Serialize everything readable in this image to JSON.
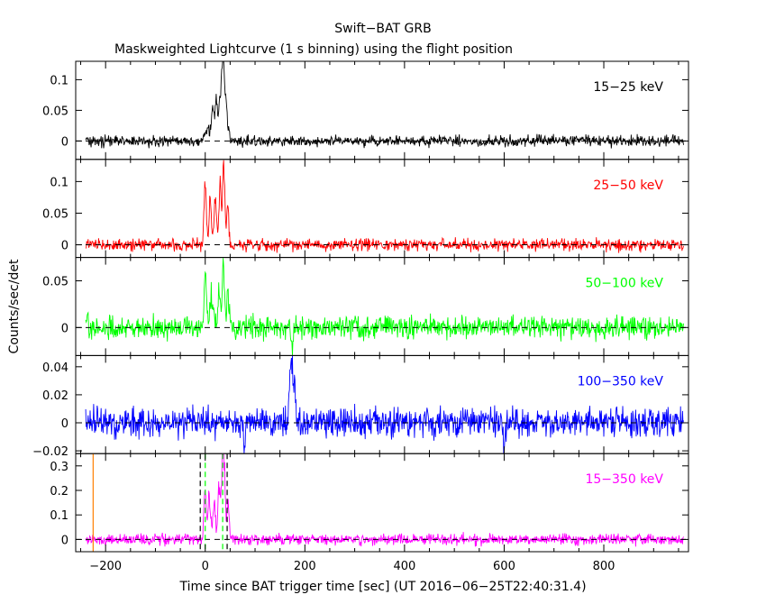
{
  "title": "Swift−BAT GRB",
  "subtitle": "Maskweighted Lightcurve (1 s binning) using the flight position",
  "ylabel": "Counts/sec/det",
  "xlabel": "Time since BAT trigger time [sec] (UT 2016−06−25T22:40:31.4)",
  "colors": {
    "axes": "#000000",
    "band_15_25": "#000000",
    "band_25_50": "#ff0000",
    "band_50_100": "#00ff00",
    "band_100_350": "#0000ff",
    "band_15_350": "#ff00ff",
    "marker_orange": "#ff7f00",
    "marker_green": "#00ff00"
  },
  "chart_data": {
    "type": "line",
    "xlim": [
      -260,
      970
    ],
    "x_ticks": [
      -200,
      0,
      200,
      400,
      600,
      800
    ],
    "x_tick_labels": [
      "−200",
      "0",
      "200",
      "400",
      "600",
      "800"
    ],
    "x_range_data": [
      -240,
      960
    ],
    "panels": [
      {
        "name": "15−25 keV",
        "color": "#000000",
        "ylim": [
          -0.03,
          0.13
        ],
        "y_ticks": [
          0,
          0.05,
          0.1
        ],
        "y_tick_labels": [
          "0",
          "0.05",
          "0.1"
        ],
        "noise": 0.0055,
        "peaks": [
          {
            "t": 15,
            "v": 0.045
          },
          {
            "t": 22,
            "v": 0.06
          },
          {
            "t": 28,
            "v": 0.04
          },
          {
            "t": 33,
            "v": 0.1
          },
          {
            "t": 37,
            "v": 0.123
          },
          {
            "t": 42,
            "v": 0.05
          }
        ],
        "vlines": []
      },
      {
        "name": "25−50 keV",
        "color": "#ff0000",
        "ylim": [
          -0.02,
          0.135
        ],
        "y_ticks": [
          0,
          0.05,
          0.1
        ],
        "y_tick_labels": [
          "0",
          "0.05",
          "0.1"
        ],
        "noise": 0.006,
        "peaks": [
          {
            "t": 0,
            "v": 0.095
          },
          {
            "t": 10,
            "v": 0.06
          },
          {
            "t": 20,
            "v": 0.07
          },
          {
            "t": 30,
            "v": 0.09
          },
          {
            "t": 37,
            "v": 0.133
          },
          {
            "t": 45,
            "v": 0.05
          }
        ],
        "vlines": []
      },
      {
        "name": "50−100 keV",
        "color": "#00ff00",
        "ylim": [
          -0.03,
          0.075
        ],
        "y_ticks": [
          0,
          0.05
        ],
        "y_tick_labels": [
          "0",
          "0.05"
        ],
        "noise": 0.0075,
        "peaks": [
          {
            "t": 0,
            "v": 0.063
          },
          {
            "t": 12,
            "v": 0.03
          },
          {
            "t": 28,
            "v": 0.035
          },
          {
            "t": 36,
            "v": 0.071
          },
          {
            "t": 45,
            "v": 0.03
          },
          {
            "t": 175,
            "v": -0.027
          }
        ],
        "vlines": []
      },
      {
        "name": "100−350 keV",
        "color": "#0000ff",
        "ylim": [
          -0.022,
          0.048
        ],
        "y_ticks": [
          -0.02,
          0,
          0.02,
          0.04
        ],
        "y_tick_labels": [
          "−0.02",
          "0",
          "0.02",
          "0.04"
        ],
        "noise": 0.0065,
        "peaks": [
          {
            "t": 170,
            "v": 0.03
          },
          {
            "t": 174,
            "v": 0.046
          },
          {
            "t": 180,
            "v": 0.025
          },
          {
            "t": 80,
            "v": -0.021
          },
          {
            "t": 600,
            "v": -0.02
          }
        ],
        "vlines": []
      },
      {
        "name": "15−350 keV",
        "color": "#ff00ff",
        "ylim": [
          -0.05,
          0.35
        ],
        "y_ticks": [
          0,
          0.1,
          0.2,
          0.3
        ],
        "y_tick_labels": [
          "0",
          "0.1",
          "0.2",
          "0.3"
        ],
        "noise": 0.014,
        "peaks": [
          {
            "t": 0,
            "v": 0.2
          },
          {
            "t": 8,
            "v": 0.14
          },
          {
            "t": 18,
            "v": 0.12
          },
          {
            "t": 28,
            "v": 0.2
          },
          {
            "t": 34,
            "v": 0.27
          },
          {
            "t": 38,
            "v": 0.3
          },
          {
            "t": 46,
            "v": 0.12
          }
        ],
        "vlines": [
          {
            "x": -225,
            "color": "#ff7f00",
            "style": "solid"
          },
          {
            "x": -10,
            "color": "#000000",
            "style": "dashed"
          },
          {
            "x": 0,
            "color": "#00ff00",
            "style": "dashed"
          },
          {
            "x": 35,
            "color": "#00ff00",
            "style": "dashed"
          },
          {
            "x": 44,
            "color": "#000000",
            "style": "dashed"
          }
        ]
      }
    ]
  }
}
